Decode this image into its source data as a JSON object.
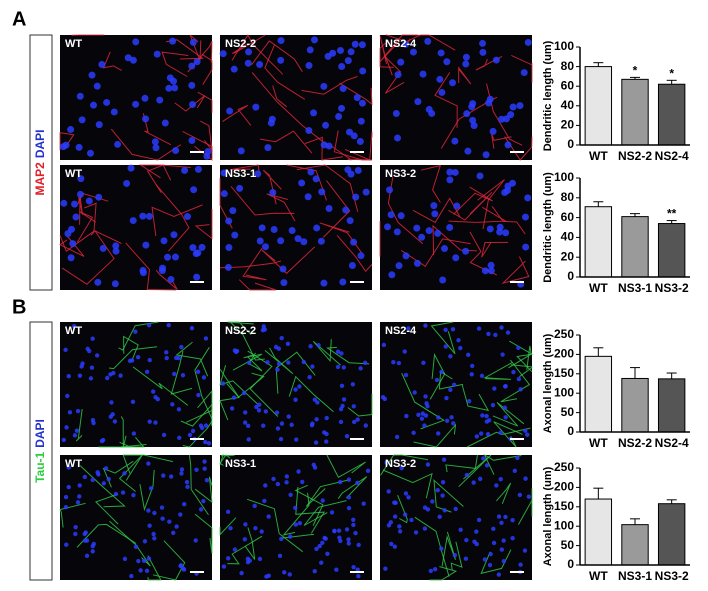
{
  "panels": [
    {
      "label": "A",
      "stains": [
        "MAP2",
        "DAPI"
      ],
      "rows": [
        [
          "WT",
          "NS2-2",
          "NS2-4"
        ],
        [
          "WT",
          "NS3-1",
          "NS3-2"
        ]
      ]
    },
    {
      "label": "B",
      "stains": [
        "Tau-1",
        "DAPI"
      ],
      "rows": [
        [
          "WT",
          "NS2-2",
          "NS2-4"
        ],
        [
          "WT",
          "NS3-1",
          "NS3-2"
        ]
      ]
    }
  ],
  "chart_data": [
    {
      "type": "bar",
      "y_label": "Dendritic length (um)",
      "categories": [
        "WT",
        "NS2-2",
        "NS2-4"
      ],
      "values": [
        80,
        67,
        62
      ],
      "errors": [
        4,
        2,
        4
      ],
      "annotations": [
        null,
        "*",
        "*"
      ],
      "colors": [
        "#e6e6e6",
        "#9a9a9a",
        "#555555"
      ],
      "ylim": [
        0,
        100
      ],
      "yticks": [
        0,
        20,
        40,
        60,
        80,
        100
      ]
    },
    {
      "type": "bar",
      "y_label": "Dendritic length (um)",
      "categories": [
        "WT",
        "NS3-1",
        "NS3-2"
      ],
      "values": [
        71,
        61,
        54
      ],
      "errors": [
        5,
        3,
        3
      ],
      "annotations": [
        null,
        null,
        "**"
      ],
      "colors": [
        "#e6e6e6",
        "#9a9a9a",
        "#555555"
      ],
      "ylim": [
        0,
        100
      ],
      "yticks": [
        0,
        20,
        40,
        60,
        80,
        100
      ]
    },
    {
      "type": "bar",
      "y_label": "Axonal length (um)",
      "categories": [
        "WT",
        "NS2-2",
        "NS2-4"
      ],
      "values": [
        195,
        138,
        137
      ],
      "errors": [
        22,
        28,
        15
      ],
      "annotations": [
        null,
        null,
        null
      ],
      "colors": [
        "#e6e6e6",
        "#9a9a9a",
        "#555555"
      ],
      "ylim": [
        0,
        250
      ],
      "yticks": [
        0,
        50,
        100,
        150,
        200,
        250
      ]
    },
    {
      "type": "bar",
      "y_label": "Axonal length (um)",
      "categories": [
        "WT",
        "NS3-1",
        "NS3-2"
      ],
      "values": [
        170,
        104,
        158
      ],
      "errors": [
        28,
        15,
        10
      ],
      "annotations": [
        null,
        null,
        null
      ],
      "colors": [
        "#e6e6e6",
        "#9a9a9a",
        "#555555"
      ],
      "ylim": [
        0,
        250
      ],
      "yticks": [
        0,
        50,
        100,
        150,
        200,
        250
      ]
    }
  ]
}
